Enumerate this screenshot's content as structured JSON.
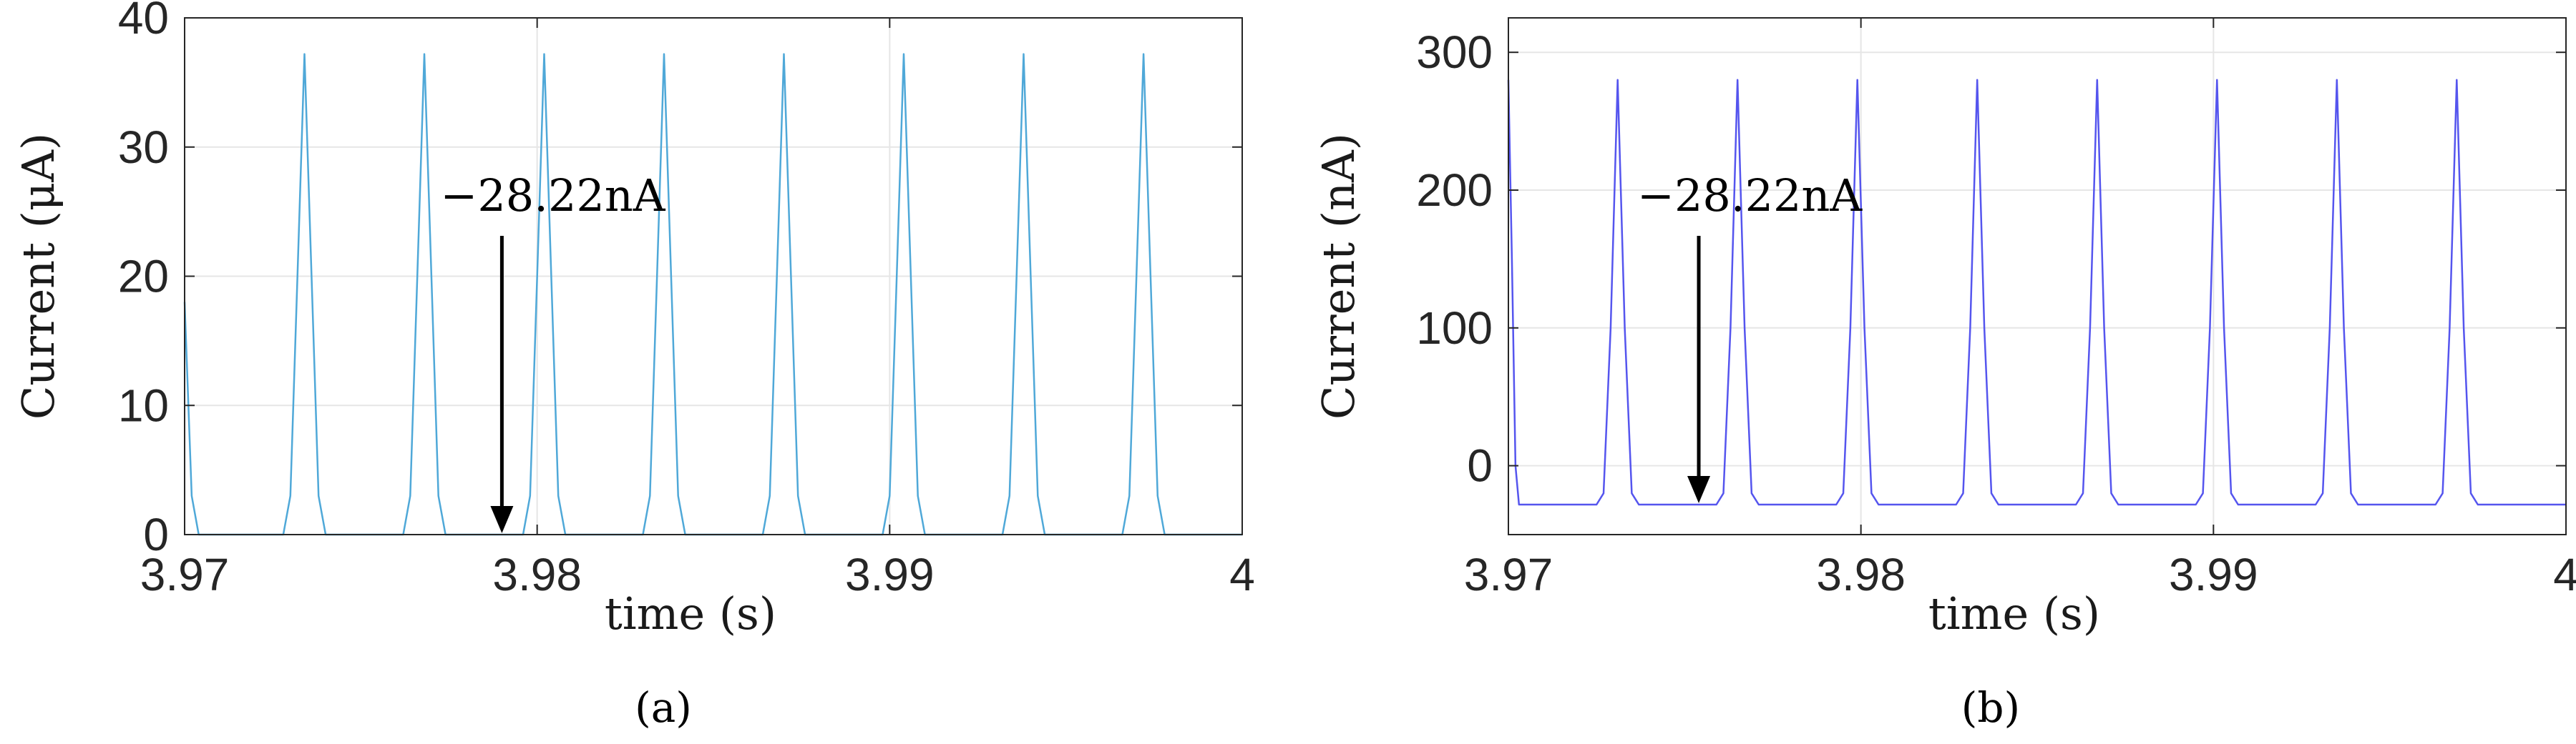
{
  "chart_data": [
    {
      "id": "a",
      "type": "line",
      "caption": "(a)",
      "xlabel": "time (s)",
      "ylabel": "Current (μA)",
      "xlim": [
        3.97,
        4.0
      ],
      "ylim": [
        0,
        40
      ],
      "xticks": [
        3.97,
        3.98,
        3.99,
        4.0
      ],
      "xtick_labels": [
        "3.97",
        "3.98",
        "3.99",
        "4"
      ],
      "yticks": [
        0,
        10,
        20,
        30,
        40
      ],
      "ytick_labels": [
        "0",
        "10",
        "20",
        "30",
        "40"
      ],
      "grid": true,
      "line_color": "#4fa8d8",
      "annotation": {
        "text": "−28.22nA",
        "x": 3.979,
        "y": 0
      },
      "series": [
        {
          "x": [
            3.97,
            3.9702,
            3.9704,
            3.9728,
            3.973,
            3.9732,
            3.9734,
            3.9736,
            3.9738,
            3.974,
            3.9762,
            3.9764,
            3.9766,
            3.9768,
            3.977,
            3.9772,
            3.9774,
            3.9796,
            3.9798,
            3.98,
            3.9802,
            3.9804,
            3.9806,
            3.9808,
            3.983,
            3.9832,
            3.9834,
            3.9836,
            3.9838,
            3.984,
            3.9842,
            3.9864,
            3.9866,
            3.9868,
            3.987,
            3.9872,
            3.9874,
            3.9876,
            3.9898,
            3.99,
            3.9902,
            3.9904,
            3.9906,
            3.9908,
            3.991,
            3.9932,
            3.9934,
            3.9936,
            3.9938,
            3.994,
            3.9942,
            3.9944,
            3.9966,
            3.9968,
            3.997,
            3.9972,
            3.9974,
            3.9976,
            3.9978,
            4.0
          ],
          "y": [
            18,
            3,
            0,
            0,
            3,
            20,
            37.2,
            20,
            3,
            0,
            0,
            3,
            20,
            37.2,
            20,
            3,
            0,
            0,
            3,
            20,
            37.2,
            20,
            3,
            0,
            0,
            3,
            20,
            37.2,
            20,
            3,
            0,
            0,
            3,
            20,
            37.2,
            20,
            3,
            0,
            0,
            3,
            20,
            37.2,
            20,
            3,
            0,
            0,
            3,
            20,
            37.2,
            20,
            3,
            0,
            0,
            3,
            20,
            37.2,
            20,
            3,
            0,
            0
          ]
        }
      ]
    },
    {
      "id": "b",
      "type": "line",
      "caption": "(b)",
      "xlabel": "time (s)",
      "ylabel": "Current (nA)",
      "xlim": [
        3.97,
        4.0
      ],
      "ylim": [
        -50,
        325
      ],
      "xticks": [
        3.97,
        3.98,
        3.99,
        4.0
      ],
      "xtick_labels": [
        "3.97",
        "3.98",
        "3.99",
        "4"
      ],
      "yticks": [
        0,
        100,
        200,
        300
      ],
      "ytick_labels": [
        "0",
        "100",
        "200",
        "300"
      ],
      "grid": true,
      "line_color": "#5555ee",
      "annotation": {
        "text": "−28.22nA",
        "x": 3.9754,
        "y": -28.22
      },
      "series": [
        {
          "x": [
            3.97,
            3.9701,
            3.9702,
            3.9703,
            3.9725,
            3.9727,
            3.9729,
            3.9731,
            3.9733,
            3.9735,
            3.9737,
            3.9759,
            3.9761,
            3.9763,
            3.9765,
            3.9767,
            3.9769,
            3.9771,
            3.9793,
            3.9795,
            3.9797,
            3.9799,
            3.9801,
            3.9803,
            3.9805,
            3.9827,
            3.9829,
            3.9831,
            3.9833,
            3.9835,
            3.9837,
            3.9839,
            3.9861,
            3.9863,
            3.9865,
            3.9867,
            3.9869,
            3.9871,
            3.9873,
            3.9895,
            3.9897,
            3.9899,
            3.9901,
            3.9903,
            3.9905,
            3.9907,
            3.9929,
            3.9931,
            3.9933,
            3.9935,
            3.9937,
            3.9939,
            3.9941,
            3.9963,
            3.9965,
            3.9967,
            3.9969,
            3.9971,
            3.9973,
            3.9975,
            3.9997,
            3.9999,
            4.0
          ],
          "y": [
            280,
            150,
            0,
            -28.22,
            -28.22,
            -20,
            100,
            280,
            100,
            -20,
            -28.22,
            -28.22,
            -20,
            100,
            280,
            100,
            -20,
            -28.22,
            -28.22,
            -20,
            100,
            280,
            100,
            -20,
            -28.22,
            -28.22,
            -20,
            100,
            280,
            100,
            -20,
            -28.22,
            -28.22,
            -20,
            100,
            280,
            100,
            -20,
            -28.22,
            -28.22,
            -20,
            100,
            280,
            100,
            -20,
            -28.22,
            -28.22,
            -20,
            100,
            280,
            100,
            -20,
            -28.22,
            -28.22,
            -20,
            100,
            280,
            100,
            -20,
            -28.22,
            -28.22,
            -28.22,
            -28.22
          ]
        }
      ]
    }
  ]
}
